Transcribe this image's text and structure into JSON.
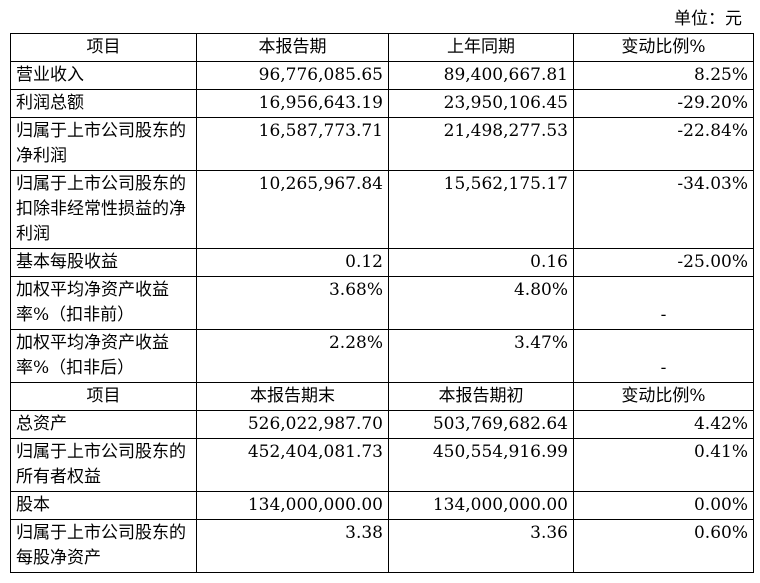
{
  "unit_label": "单位：元",
  "header1": [
    "项目",
    "本报告期",
    "上年同期",
    "变动比例%"
  ],
  "rows1": [
    {
      "item": "营业收入",
      "current": "96,776,085.65",
      "prior": "89,400,667.81",
      "change": "8.25%"
    },
    {
      "item": "利润总额",
      "current": "16,956,643.19",
      "prior": "23,950,106.45",
      "change": "-29.20%"
    },
    {
      "item": "归属于上市公司股东的净利润",
      "current": "16,587,773.71",
      "prior": "21,498,277.53",
      "change": "-22.84%"
    },
    {
      "item": "归属于上市公司股东的扣除非经常性损益的净利润",
      "current": "10,265,967.84",
      "prior": "15,562,175.17",
      "change": "-34.03%"
    },
    {
      "item": "基本每股收益",
      "current": "0.12",
      "prior": "0.16",
      "change": "-25.00%"
    },
    {
      "item": "加权平均净资产收益率%（扣非前）",
      "current": "3.68%",
      "prior": "4.80%",
      "change": "-"
    },
    {
      "item": "加权平均净资产收益率%（扣非后）",
      "current": "2.28%",
      "prior": "3.47%",
      "change": "-"
    }
  ],
  "header2": [
    "项目",
    "本报告期末",
    "本报告期初",
    "变动比例%"
  ],
  "rows2": [
    {
      "item": "总资产",
      "current": "526,022,987.70",
      "prior": "503,769,682.64",
      "change": "4.42%"
    },
    {
      "item": "归属于上市公司股东的所有者权益",
      "current": "452,404,081.73",
      "prior": "450,554,916.99",
      "change": "0.41%"
    },
    {
      "item": "股本",
      "current": "134,000,000.00",
      "prior": "134,000,000.00",
      "change": "0.00%"
    },
    {
      "item": "归属于上市公司股东的每股净资产",
      "current": "3.38",
      "prior": "3.36",
      "change": "0.60%"
    }
  ]
}
